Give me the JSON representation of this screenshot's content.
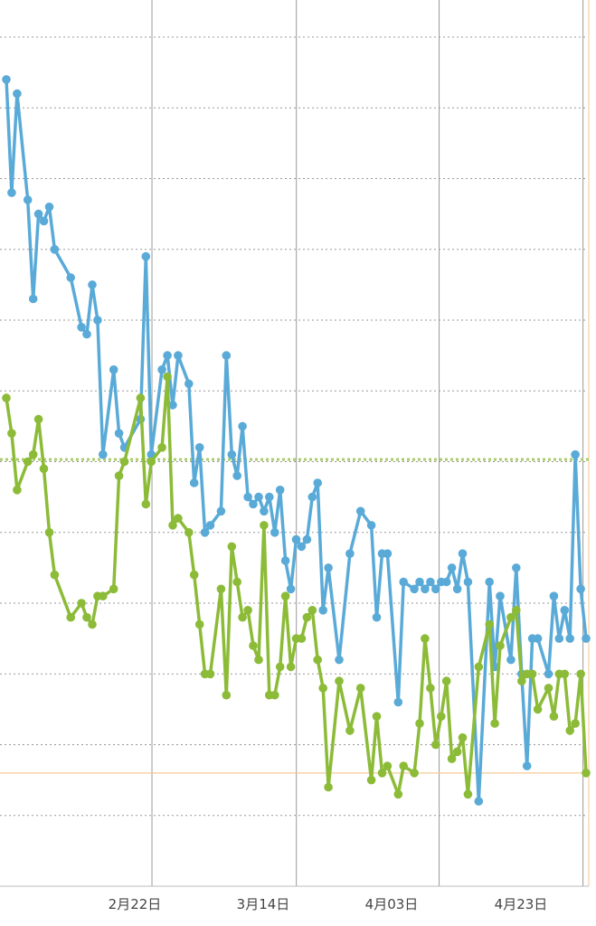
{
  "chart_data": {
    "type": "line",
    "x_tick_labels": [
      "2月22日",
      "3月14日",
      "4月03日",
      "4月23日"
    ],
    "grid": true,
    "colors": {
      "series_blue": "#5aaad8",
      "series_green": "#8cbb38",
      "green_reference_line": "#a9cc6a",
      "orange_reference_line": "#f5c58e",
      "gridline": "#999999",
      "vertical_grid": "#9a9a9a"
    },
    "reference_lines": [
      {
        "y": 6.03,
        "style": "dotted",
        "color_key": "green_reference_line"
      },
      {
        "y": 1.6,
        "style": "solid",
        "color_key": "orange_reference_line"
      }
    ],
    "series": [
      {
        "color_key": "series_blue",
        "x": [
          0,
          1,
          2,
          4,
          5,
          6,
          7,
          8,
          9,
          12,
          14,
          15,
          16,
          17,
          18,
          20,
          21,
          22,
          25,
          26,
          27,
          29,
          30,
          31,
          32,
          34,
          35,
          36,
          37,
          38,
          40,
          41,
          42,
          43,
          44,
          45,
          46,
          47,
          48,
          49,
          50,
          51,
          52,
          53,
          54,
          55,
          56,
          57,
          58,
          59,
          60,
          62,
          64,
          66,
          68,
          69,
          70,
          71,
          73,
          74,
          76,
          77,
          78,
          79,
          80,
          81,
          82,
          83,
          84,
          85,
          86,
          88,
          90,
          91,
          92,
          94,
          95,
          96,
          97,
          98,
          99,
          101,
          102,
          103,
          104,
          105,
          106,
          107,
          108
        ],
        "y": [
          11.4,
          9.8,
          11.2,
          9.7,
          8.3,
          9.5,
          9.4,
          9.6,
          9.0,
          8.6,
          7.9,
          7.8,
          8.5,
          8.0,
          6.1,
          7.3,
          6.4,
          6.2,
          6.6,
          8.9,
          6.1,
          7.3,
          7.5,
          6.8,
          7.5,
          7.1,
          5.7,
          6.2,
          5.0,
          5.1,
          5.3,
          7.5,
          6.1,
          5.8,
          6.5,
          5.5,
          5.4,
          5.5,
          5.3,
          5.5,
          5.0,
          5.6,
          4.6,
          4.2,
          4.9,
          4.8,
          4.9,
          5.5,
          5.7,
          3.9,
          4.5,
          3.2,
          4.7,
          5.3,
          5.1,
          3.8,
          4.7,
          4.7,
          2.6,
          4.3,
          4.2,
          4.3,
          4.2,
          4.3,
          4.2,
          4.3,
          4.3,
          4.5,
          4.2,
          4.7,
          4.3,
          1.2,
          4.3,
          3.1,
          4.1,
          3.2,
          4.5,
          3.0,
          1.7,
          3.5,
          3.5,
          3.0,
          4.1,
          3.5,
          3.9,
          3.5,
          6.1,
          4.2,
          3.5
        ]
      },
      {
        "color_key": "series_green",
        "x": [
          0,
          1,
          2,
          4,
          5,
          6,
          7,
          8,
          9,
          12,
          14,
          15,
          16,
          17,
          18,
          20,
          21,
          22,
          25,
          26,
          27,
          29,
          30,
          31,
          32,
          34,
          35,
          36,
          37,
          38,
          40,
          41,
          42,
          43,
          44,
          45,
          46,
          47,
          48,
          49,
          50,
          51,
          52,
          53,
          54,
          55,
          56,
          57,
          58,
          59,
          60,
          62,
          64,
          66,
          68,
          69,
          70,
          71,
          73,
          74,
          76,
          77,
          78,
          79,
          80,
          81,
          82,
          83,
          84,
          85,
          86,
          88,
          90,
          91,
          92,
          94,
          95,
          96,
          97,
          98,
          99,
          101,
          102,
          103,
          104,
          105,
          106,
          107,
          108
        ],
        "y": [
          6.9,
          6.4,
          5.6,
          6.0,
          6.1,
          6.6,
          5.9,
          5.0,
          4.4,
          3.8,
          4.0,
          3.8,
          3.7,
          4.1,
          4.1,
          4.2,
          5.8,
          6.0,
          6.9,
          5.4,
          6.0,
          6.2,
          7.2,
          5.1,
          5.2,
          5.0,
          4.4,
          3.7,
          3.0,
          3.0,
          4.2,
          2.7,
          4.8,
          4.3,
          3.8,
          3.9,
          3.4,
          3.2,
          5.1,
          2.7,
          2.7,
          3.1,
          4.1,
          3.1,
          3.5,
          3.5,
          3.8,
          3.9,
          3.2,
          2.8,
          1.4,
          2.9,
          2.2,
          2.8,
          1.5,
          2.4,
          1.6,
          1.7,
          1.3,
          1.7,
          1.6,
          2.3,
          3.5,
          2.8,
          2.0,
          2.4,
          2.9,
          1.8,
          1.9,
          2.1,
          1.3,
          3.1,
          3.7,
          2.3,
          3.4,
          3.8,
          3.9,
          2.9,
          3.0,
          3.0,
          2.5,
          2.8,
          2.4,
          3.0,
          3.0,
          2.2,
          2.3,
          3.0,
          1.6
        ]
      }
    ]
  }
}
